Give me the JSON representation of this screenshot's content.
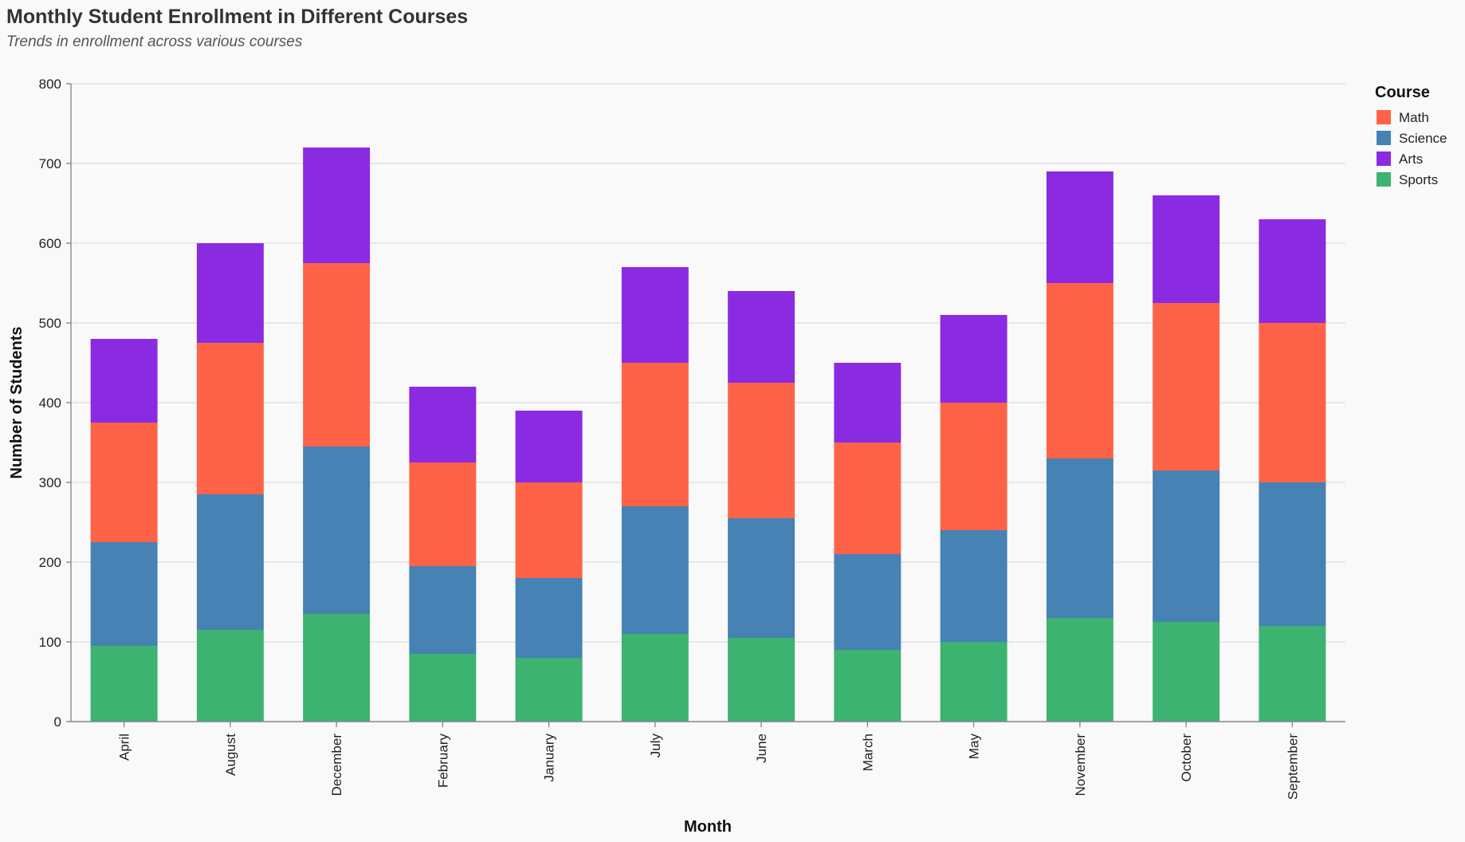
{
  "chart_data": {
    "type": "bar",
    "stacked": true,
    "title": "Monthly Student Enrollment in Different Courses",
    "subtitle": "Trends in enrollment across various courses",
    "xlabel": "Month",
    "ylabel": "Number of Students",
    "ylim": [
      0,
      800
    ],
    "yticks": [
      0,
      100,
      200,
      300,
      400,
      500,
      600,
      700,
      800
    ],
    "grid": true,
    "legend_title": "Course",
    "legend_position": "top-right",
    "categories": [
      "April",
      "August",
      "December",
      "February",
      "January",
      "July",
      "June",
      "March",
      "May",
      "November",
      "October",
      "September"
    ],
    "series": [
      {
        "name": "Sports",
        "color": "#3cb371",
        "values": [
          95,
          115,
          135,
          85,
          80,
          110,
          105,
          90,
          100,
          130,
          125,
          120
        ]
      },
      {
        "name": "Science",
        "color": "#4682b4",
        "values": [
          130,
          170,
          210,
          110,
          100,
          160,
          150,
          120,
          140,
          200,
          190,
          180
        ]
      },
      {
        "name": "Math",
        "color": "#ff6347",
        "values": [
          150,
          190,
          230,
          130,
          120,
          180,
          170,
          140,
          160,
          220,
          210,
          200
        ]
      },
      {
        "name": "Arts",
        "color": "#8a2be2",
        "values": [
          105,
          125,
          145,
          95,
          90,
          120,
          115,
          100,
          110,
          140,
          135,
          130
        ]
      }
    ],
    "legend_order": [
      "Math",
      "Science",
      "Arts",
      "Sports"
    ]
  }
}
